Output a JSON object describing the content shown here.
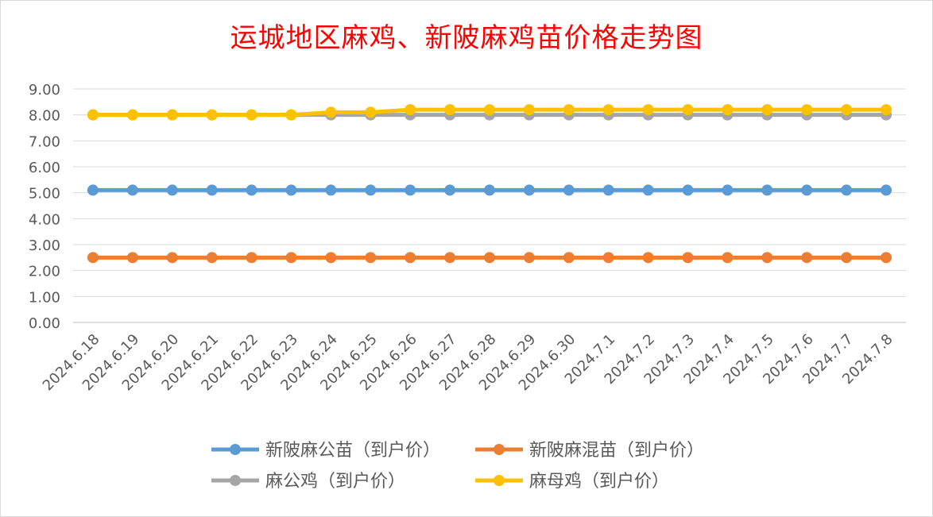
{
  "chart_data": {
    "type": "line",
    "title": "运城地区麻鸡、新陂麻鸡苗价格走势图",
    "categories": [
      "2024.6.18",
      "2024.6.19",
      "2024.6.20",
      "2024.6.21",
      "2024.6.22",
      "2024.6.23",
      "2024.6.24",
      "2024.6.25",
      "2024.6.26",
      "2024.6.27",
      "2024.6.28",
      "2024.6.29",
      "2024.6.30",
      "2024.7.1",
      "2024.7.2",
      "2024.7.3",
      "2024.7.4",
      "2024.7.5",
      "2024.7.6",
      "2024.7.7",
      "2024.7.8"
    ],
    "ylim": [
      0,
      9
    ],
    "yticks": [
      "0.00",
      "1.00",
      "2.00",
      "3.00",
      "4.00",
      "5.00",
      "6.00",
      "7.00",
      "8.00",
      "9.00"
    ],
    "grid": true,
    "legend_position": "bottom",
    "series": [
      {
        "name": "新陂麻公苗（到户价）",
        "color": "#5b9bd5",
        "values": [
          5.1,
          5.1,
          5.1,
          5.1,
          5.1,
          5.1,
          5.1,
          5.1,
          5.1,
          5.1,
          5.1,
          5.1,
          5.1,
          5.1,
          5.1,
          5.1,
          5.1,
          5.1,
          5.1,
          5.1,
          5.1
        ]
      },
      {
        "name": "新陂麻混苗（到户价）",
        "color": "#ed7d31",
        "values": [
          2.5,
          2.5,
          2.5,
          2.5,
          2.5,
          2.5,
          2.5,
          2.5,
          2.5,
          2.5,
          2.5,
          2.5,
          2.5,
          2.5,
          2.5,
          2.5,
          2.5,
          2.5,
          2.5,
          2.5,
          2.5
        ]
      },
      {
        "name": "麻公鸡（到户价）",
        "color": "#a5a5a5",
        "values": [
          8.0,
          8.0,
          8.0,
          8.0,
          8.0,
          8.0,
          8.0,
          8.0,
          8.0,
          8.0,
          8.0,
          8.0,
          8.0,
          8.0,
          8.0,
          8.0,
          8.0,
          8.0,
          8.0,
          8.0,
          8.0
        ]
      },
      {
        "name": "麻母鸡（到户价）",
        "color": "#ffc000",
        "values": [
          8.0,
          8.0,
          8.0,
          8.0,
          8.0,
          8.0,
          8.1,
          8.1,
          8.2,
          8.2,
          8.2,
          8.2,
          8.2,
          8.2,
          8.2,
          8.2,
          8.2,
          8.2,
          8.2,
          8.2,
          8.2
        ]
      }
    ]
  }
}
